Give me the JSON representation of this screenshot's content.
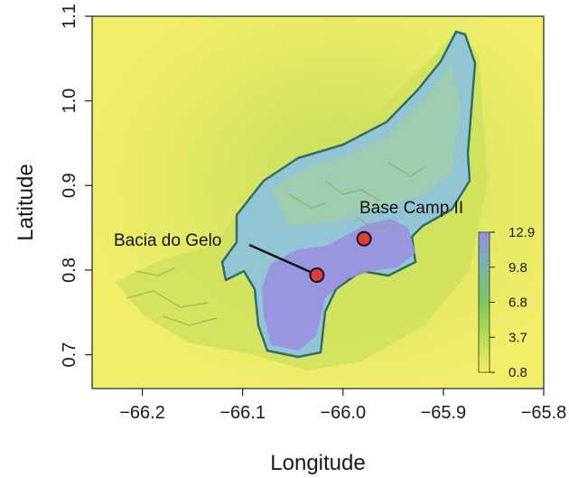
{
  "map": {
    "axes": {
      "xlabel": "Longitude",
      "ylabel": "Latitude",
      "x_range": [
        -66.25,
        -65.8
      ],
      "y_range": [
        0.66,
        1.1
      ],
      "x_ticks": [
        {
          "value": -66.2,
          "label": "−66.2"
        },
        {
          "value": -66.1,
          "label": "−66.1"
        },
        {
          "value": -66.0,
          "label": "−66.0"
        },
        {
          "value": -65.9,
          "label": "−65.9"
        },
        {
          "value": -65.8,
          "label": "−65.8"
        }
      ],
      "y_ticks": [
        {
          "value": 0.7,
          "label": "0.7"
        },
        {
          "value": 0.8,
          "label": "0.8"
        },
        {
          "value": 0.9,
          "label": "0.9"
        },
        {
          "value": 1.0,
          "label": "1.0"
        },
        {
          "value": 1.1,
          "label": "1.1"
        }
      ]
    },
    "sites": [
      {
        "name": "Bacia do Gelo",
        "lon": -66.026,
        "lat": 0.794
      },
      {
        "name": "Base Camp II",
        "lon": -65.979,
        "lat": 0.837
      }
    ],
    "colorbar": {
      "ticks": [
        "12.9",
        "9.8",
        "6.8",
        "3.7",
        "0.8"
      ],
      "min": 0.8,
      "max": 12.9,
      "colors": [
        "#f2ee63",
        "#b8dc55",
        "#7ec560",
        "#74b6a8",
        "#8f90e8"
      ]
    },
    "colors": {
      "background": "#f0ec6a",
      "lowland": "#c8de5a",
      "valley": "#93c6cf",
      "deep": "#9a8fe0",
      "rim": "#2f6d68",
      "marker": "#e33a3a"
    }
  }
}
